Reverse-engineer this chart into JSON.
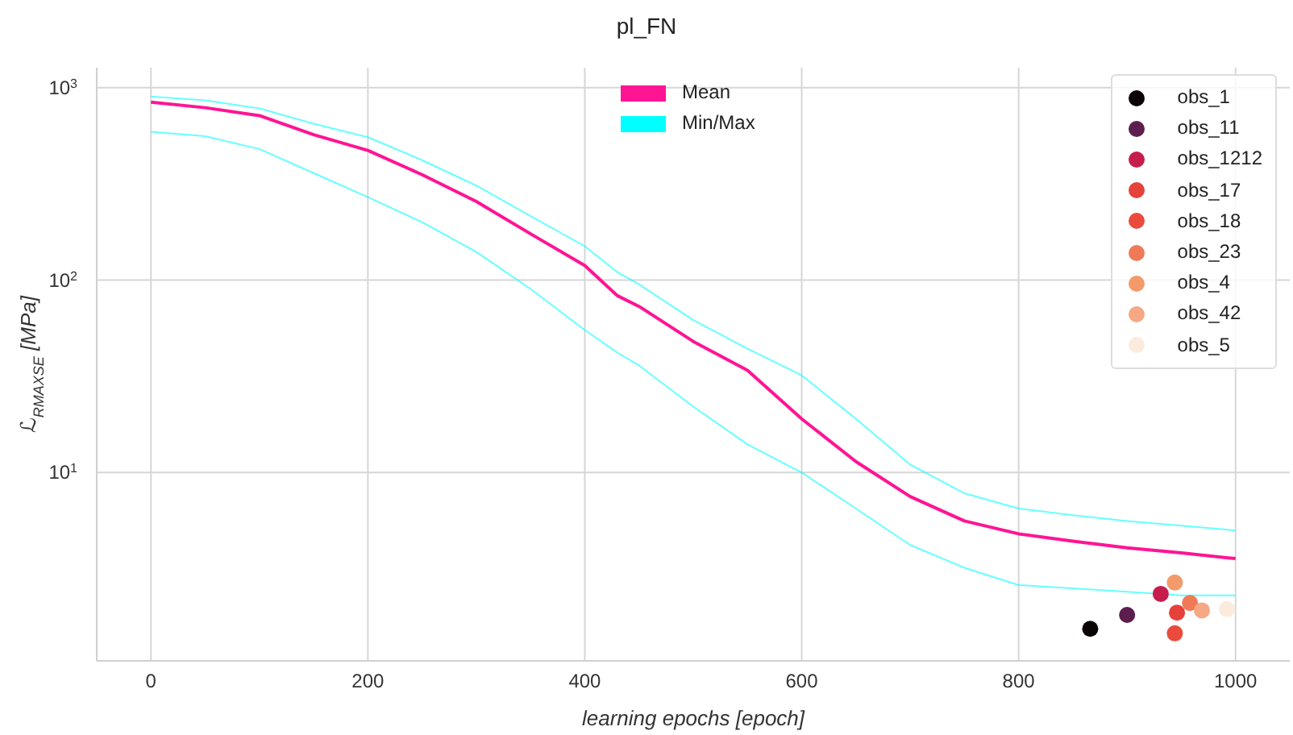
{
  "chart_data": {
    "type": "line",
    "title": "pl_FN",
    "xlabel": "learning epochs [epoch]",
    "ylabel": "ℒ$_{RMAXSE}$ [MPa]",
    "x": [
      0,
      50,
      100,
      150,
      200,
      250,
      300,
      350,
      400,
      430,
      450,
      500,
      550,
      600,
      650,
      700,
      750,
      800,
      850,
      900,
      950,
      1000
    ],
    "xlim": [
      -50,
      1050
    ],
    "xticks": [
      0,
      200,
      400,
      600,
      800,
      1000
    ],
    "ylim": [
      1.05,
      1270
    ],
    "yticks": [
      {
        "value": 10,
        "label": "10$^{1}$"
      },
      {
        "value": 100,
        "label": "10$^{2}$"
      },
      {
        "value": 1000,
        "label": "10$^{3}$"
      }
    ],
    "log": "y",
    "grid": true,
    "legend": "top right",
    "series": [
      {
        "name": "Min/Max",
        "color": "#00ffff",
        "values": [
          590,
          560,
          480,
          360,
          270,
          200,
          140,
          90,
          55,
          42,
          36,
          22,
          14,
          10,
          6.5,
          4.2,
          3.2,
          2.6,
          2.5,
          2.4,
          2.3,
          2.3
        ]
      },
      {
        "color": "#00ffff",
        "values": [
          900,
          860,
          780,
          650,
          553,
          420,
          310,
          215,
          150,
          110,
          95,
          62,
          44,
          32,
          19,
          11,
          7.8,
          6.5,
          6.0,
          5.6,
          5.3,
          5.0
        ]
      },
      {
        "name": "Mean",
        "color": "#ff1493",
        "values": [
          840,
          787,
          716,
          570,
          472,
          353,
          256,
          174,
          119,
          83,
          73,
          48,
          34,
          19,
          11.4,
          7.5,
          5.6,
          4.8,
          4.4,
          4.06,
          3.82,
          3.57
        ]
      },
      {
        "name": "obs_1",
        "type": "scatter",
        "color": "#0b0405",
        "x": [
          866
        ],
        "values": [
          1.54
        ]
      },
      {
        "name": "obs_11",
        "type": "scatter",
        "color": "#5c1e4e",
        "x": [
          900
        ],
        "values": [
          1.82
        ]
      },
      {
        "name": "obs_1212",
        "type": "scatter",
        "color": "#c71d4d",
        "x": [
          931
        ],
        "values": [
          2.34
        ]
      },
      {
        "name": "obs_17",
        "type": "scatter",
        "color": "#e5423c",
        "x": [
          946
        ],
        "values": [
          1.87
        ]
      },
      {
        "name": "obs_18",
        "type": "scatter",
        "color": "#ea4b3c",
        "x": [
          944
        ],
        "values": [
          1.46
        ]
      },
      {
        "name": "obs_23",
        "type": "scatter",
        "color": "#f07a57",
        "x": [
          958
        ],
        "values": [
          2.1
        ]
      },
      {
        "name": "obs_4",
        "type": "scatter",
        "color": "#f39a6a",
        "x": [
          944
        ],
        "values": [
          2.68
        ]
      },
      {
        "name": "obs_42",
        "type": "scatter",
        "color": "#f5a883",
        "x": [
          969
        ],
        "values": [
          1.92
        ]
      },
      {
        "name": "obs_5",
        "type": "scatter",
        "color": "#faebdd",
        "x": [
          992
        ],
        "values": [
          1.95
        ]
      }
    ]
  }
}
